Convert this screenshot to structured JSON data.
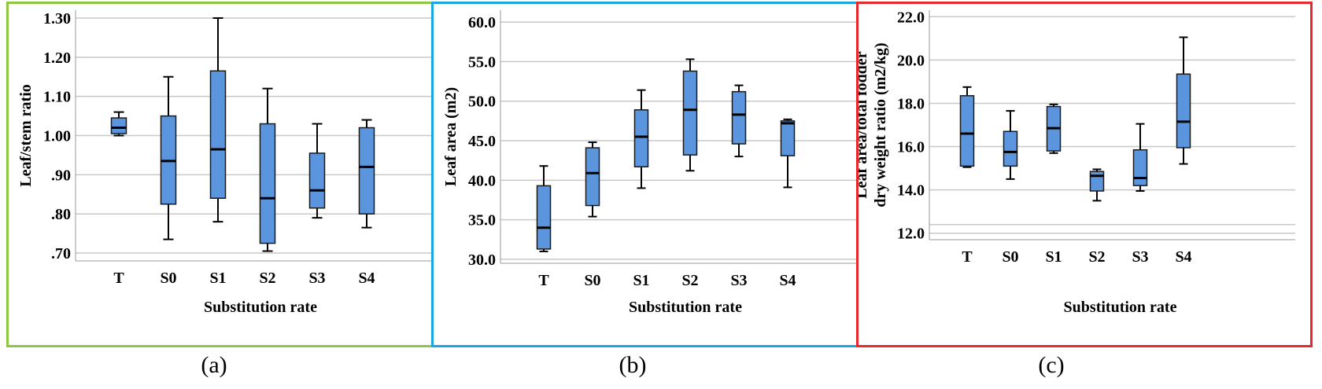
{
  "colors": {
    "box_fill": "#5b95dd",
    "box_stroke": "#1a1a1a",
    "grid": "#c8c8c8",
    "frames": [
      "#8dc63f",
      "#1aa7e0",
      "#e8282b"
    ]
  },
  "chart_data": [
    {
      "type": "boxplot",
      "caption": "(a)",
      "xlabel": "Substitution rate",
      "ylabel": "Leaf/stem ratio",
      "categories": [
        "T",
        "S0",
        "S1",
        "S2",
        "S3",
        "S4"
      ],
      "ylim": [
        0.68,
        1.32
      ],
      "yticks": [
        0.7,
        0.8,
        0.9,
        1.0,
        1.1,
        1.2,
        1.3
      ],
      "ytick_labels": [
        ".70",
        ".80",
        ".90",
        "1.00",
        "1.10",
        "1.20",
        "1.30"
      ],
      "boxes": [
        {
          "min": 1.0,
          "q1": 1.005,
          "median": 1.02,
          "q3": 1.045,
          "max": 1.06
        },
        {
          "min": 0.735,
          "q1": 0.825,
          "median": 0.935,
          "q3": 1.05,
          "max": 1.15
        },
        {
          "min": 0.78,
          "q1": 0.84,
          "median": 0.965,
          "q3": 1.165,
          "max": 1.3
        },
        {
          "min": 0.705,
          "q1": 0.725,
          "median": 0.84,
          "q3": 1.03,
          "max": 1.12
        },
        {
          "min": 0.79,
          "q1": 0.815,
          "median": 0.86,
          "q3": 0.955,
          "max": 1.03
        },
        {
          "min": 0.765,
          "q1": 0.8,
          "median": 0.92,
          "q3": 1.02,
          "max": 1.04
        }
      ]
    },
    {
      "type": "boxplot",
      "caption": "(b)",
      "xlabel": "Substitution rate",
      "ylabel": "Leaf area  (m2)",
      "categories": [
        "T",
        "S0",
        "S1",
        "S2",
        "S3",
        "S4"
      ],
      "ylim": [
        29.5,
        61.5
      ],
      "yticks": [
        30,
        35,
        40,
        45,
        50,
        55,
        60
      ],
      "ytick_labels": [
        "30.0",
        "35.0",
        "40.0",
        "45.0",
        "50.0",
        "55.0",
        "60.0"
      ],
      "boxes": [
        {
          "min": 31.0,
          "q1": 31.3,
          "median": 34.0,
          "q3": 39.3,
          "max": 41.8
        },
        {
          "min": 35.4,
          "q1": 36.8,
          "median": 40.9,
          "q3": 44.1,
          "max": 44.8
        },
        {
          "min": 39.0,
          "q1": 41.7,
          "median": 45.5,
          "q3": 48.9,
          "max": 51.4
        },
        {
          "min": 41.2,
          "q1": 43.2,
          "median": 48.9,
          "q3": 53.8,
          "max": 55.3
        },
        {
          "min": 43.0,
          "q1": 44.6,
          "median": 48.3,
          "q3": 51.2,
          "max": 52.0
        },
        {
          "min": 39.1,
          "q1": 43.1,
          "median": 47.2,
          "q3": 47.5,
          "max": 47.7
        }
      ]
    },
    {
      "type": "boxplot",
      "caption": "(c)",
      "xlabel": "Substitution rate",
      "ylabel": "Leaf area/total fodder",
      "ylabel_line2": "dry weight ratio (m2/kg)",
      "categories": [
        "T",
        "S0",
        "S1",
        "S2",
        "S3",
        "S4"
      ],
      "ylim": [
        11.7,
        22.3
      ],
      "yticks": [
        12,
        14,
        16,
        18,
        20,
        22
      ],
      "ytick_labels": [
        "12.0",
        "14.0",
        "16.0",
        "18.0",
        "20.0",
        "22.0"
      ],
      "extra_gridline": 12.4,
      "boxes": [
        {
          "min": 15.05,
          "q1": 15.1,
          "median": 16.6,
          "q3": 18.35,
          "max": 18.75
        },
        {
          "min": 14.5,
          "q1": 15.1,
          "median": 15.75,
          "q3": 16.7,
          "max": 17.65
        },
        {
          "min": 15.7,
          "q1": 15.8,
          "median": 16.85,
          "q3": 17.85,
          "max": 17.95
        },
        {
          "min": 13.5,
          "q1": 13.95,
          "median": 14.65,
          "q3": 14.85,
          "max": 14.95
        },
        {
          "min": 13.95,
          "q1": 14.2,
          "median": 14.55,
          "q3": 15.85,
          "max": 17.05
        },
        {
          "min": 15.2,
          "q1": 15.95,
          "median": 17.15,
          "q3": 19.35,
          "max": 21.05
        }
      ]
    }
  ]
}
